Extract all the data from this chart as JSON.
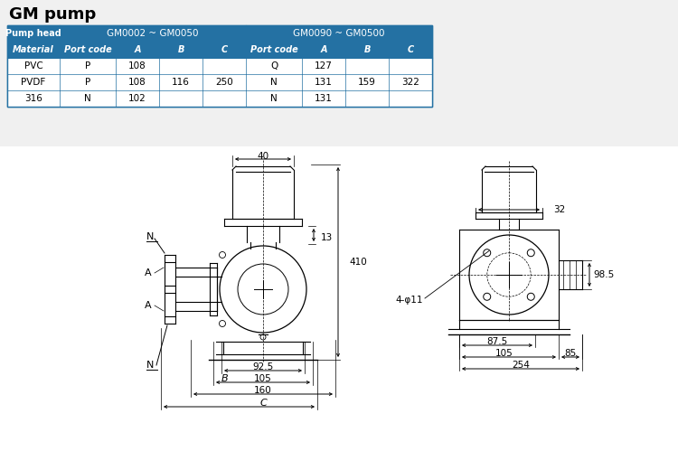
{
  "title": "GM pump",
  "bg_color": "#f0f0f0",
  "table_header_color": "#2471a3",
  "table_header_text_color": "#ffffff",
  "table_border_color": "#2471a3",
  "table": {
    "col1_header": "Pump head",
    "col_group1": "GM0002 ~ GM0050",
    "col_group2": "GM0090 ~ GM0500",
    "subheaders": [
      "Material",
      "Port code",
      "A",
      "B",
      "C",
      "Port code",
      "A",
      "B",
      "C"
    ],
    "rows": [
      [
        "PVC",
        "P",
        "108",
        "",
        "",
        "Q",
        "127",
        "",
        ""
      ],
      [
        "PVDF",
        "P",
        "108",
        "116",
        "250",
        "N",
        "131",
        "159",
        "322"
      ],
      [
        "316",
        "N",
        "102",
        "",
        "",
        "N",
        "131",
        "",
        ""
      ]
    ]
  }
}
